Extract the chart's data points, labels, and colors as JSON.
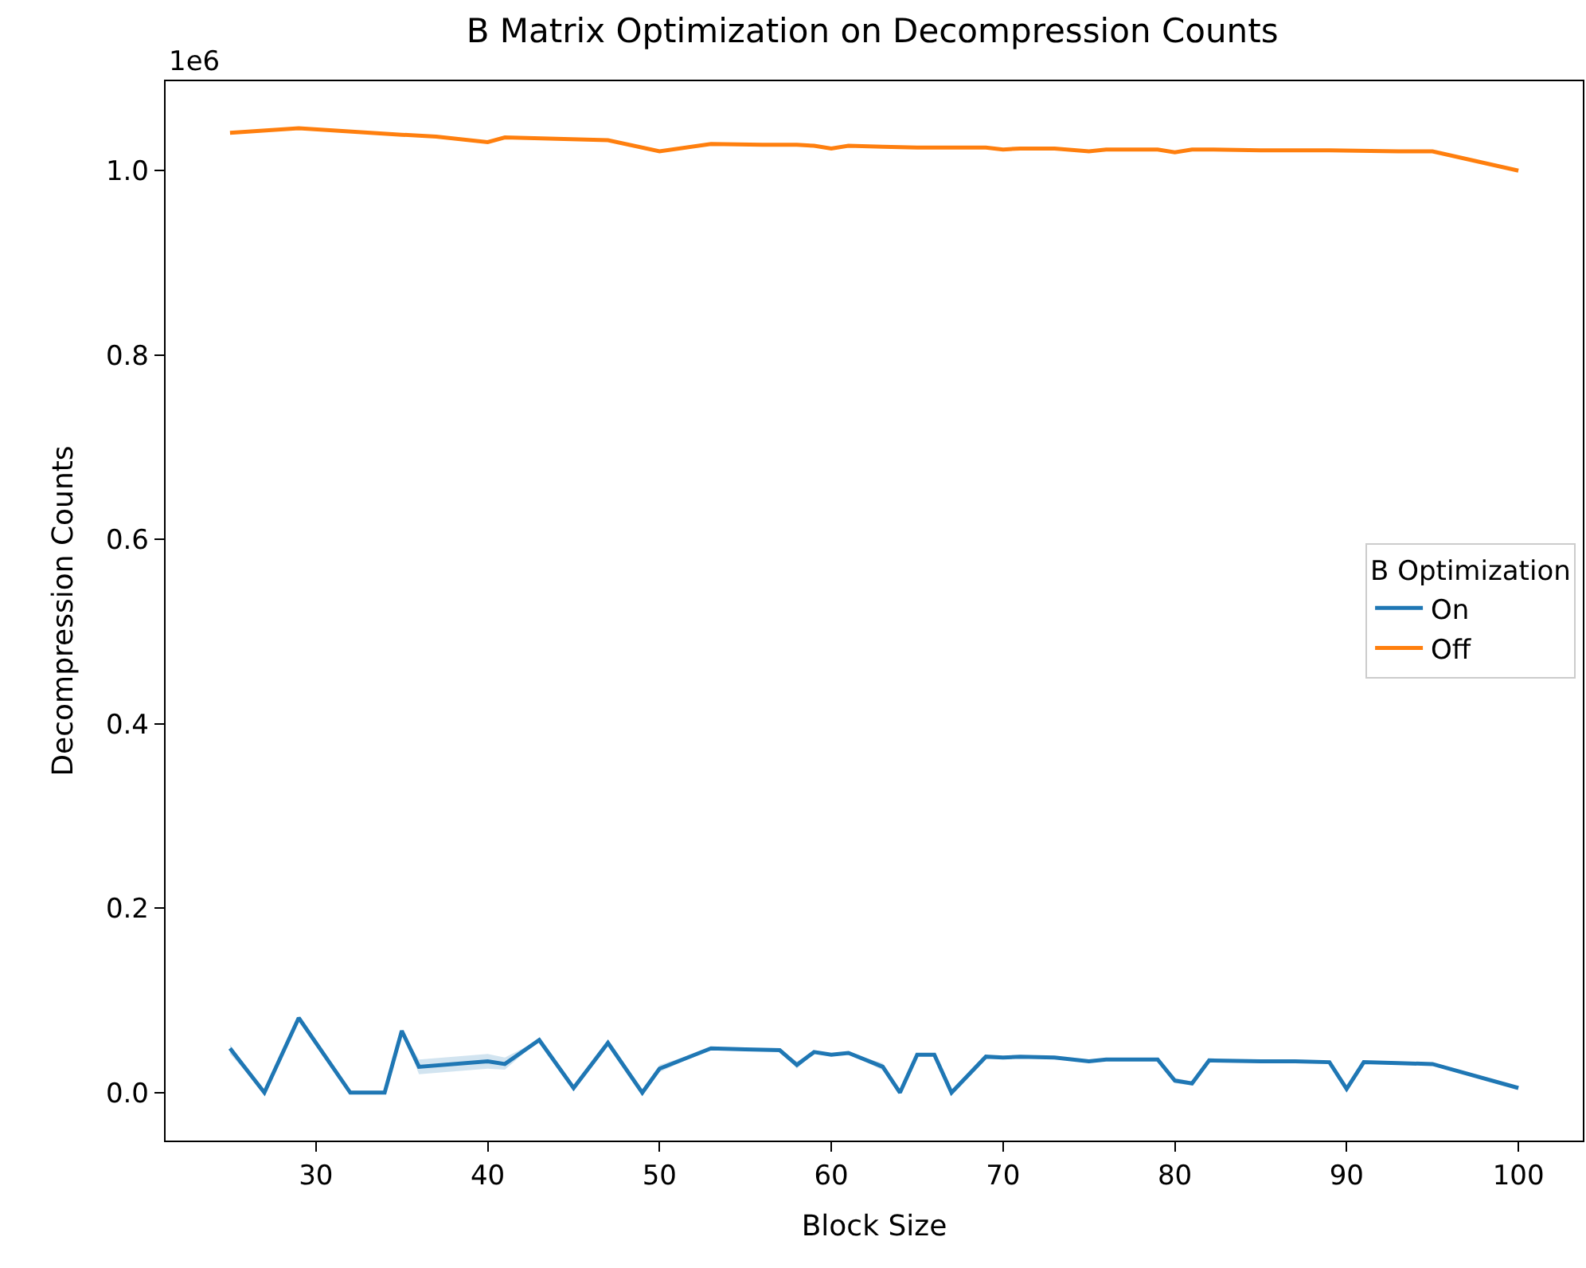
{
  "chart_data": {
    "type": "line",
    "title": "B Matrix Optimization on Decompression Counts",
    "xlabel": "Block Size",
    "ylabel": "Decompression Counts",
    "legend_title": "B Optimization",
    "legend": "right",
    "xlim": [
      21.25,
      103.75
    ],
    "xticks": [
      30,
      40,
      50,
      60,
      70,
      80,
      90,
      100
    ],
    "ylim": [
      -0.052,
      1.097
    ],
    "yticks": [
      {
        "value": 0,
        "label": "0.0"
      },
      0.2,
      0.4,
      0.6,
      0.8,
      {
        "value": 1,
        "label": "1.0"
      }
    ],
    "annotations": [
      "1e6"
    ],
    "series": [
      {
        "name": "On",
        "color": "#1f77b4",
        "x": [
          25,
          27,
          29,
          32,
          34,
          35,
          36,
          40,
          41,
          43,
          45,
          47,
          49,
          50,
          53,
          55,
          57,
          58,
          59,
          60,
          61,
          63,
          64,
          65,
          66,
          67,
          69,
          70,
          71,
          73,
          75,
          76,
          79,
          80,
          81,
          82,
          85,
          87,
          89,
          90,
          91,
          93,
          95,
          100
        ],
        "values": [
          0.048,
          0,
          0.081,
          0,
          0,
          0.067,
          0.028,
          0.034,
          0.031,
          0.057,
          0.005,
          0.054,
          0,
          0.026,
          0.048,
          0.047,
          0.046,
          0.03,
          0.044,
          0.041,
          0.043,
          0.028,
          0,
          0.041,
          0.041,
          0,
          0.039,
          0.038,
          0.039,
          0.038,
          0.034,
          0.036,
          0.036,
          0.013,
          0.01,
          0.035,
          0.034,
          0.034,
          0.033,
          0.004,
          0.033,
          0.032,
          0.031,
          0.005
        ],
        "lower": [
          0.042,
          0,
          0.081,
          0,
          0,
          0.067,
          0.02,
          0.026,
          0.025,
          0.057,
          0.005,
          0.054,
          0,
          0.022,
          0.048,
          0.047,
          0.046,
          0.026,
          0.044,
          0.041,
          0.043,
          0.024,
          0,
          0.041,
          0.041,
          0,
          0.039,
          0.038,
          0.039,
          0.038,
          0.034,
          0.036,
          0.036,
          0.01,
          0.008,
          0.035,
          0.034,
          0.034,
          0.033,
          0.004,
          0.033,
          0.032,
          0.031,
          0.005
        ],
        "upper": [
          0.052,
          0,
          0.081,
          0,
          0,
          0.067,
          0.036,
          0.042,
          0.038,
          0.057,
          0.005,
          0.054,
          0,
          0.03,
          0.048,
          0.047,
          0.046,
          0.034,
          0.044,
          0.041,
          0.043,
          0.032,
          0,
          0.041,
          0.041,
          0,
          0.039,
          0.038,
          0.039,
          0.038,
          0.034,
          0.036,
          0.036,
          0.016,
          0.012,
          0.035,
          0.034,
          0.034,
          0.033,
          0.004,
          0.033,
          0.032,
          0.031,
          0.005
        ]
      },
      {
        "name": "Off",
        "color": "#ff7f0e",
        "x": [
          25,
          29,
          35,
          37,
          40,
          41,
          47,
          50,
          53,
          56,
          58,
          59,
          60,
          61,
          63,
          65,
          69,
          70,
          71,
          73,
          75,
          76,
          79,
          80,
          81,
          82,
          85,
          89,
          93,
          95,
          100
        ],
        "values": [
          1.041,
          1.046,
          1.039,
          1.037,
          1.031,
          1.036,
          1.033,
          1.021,
          1.029,
          1.028,
          1.028,
          1.027,
          1.024,
          1.027,
          1.026,
          1.025,
          1.025,
          1.023,
          1.024,
          1.024,
          1.021,
          1.023,
          1.023,
          1.02,
          1.023,
          1.023,
          1.022,
          1.022,
          1.021,
          1.021,
          1.0
        ]
      }
    ]
  }
}
